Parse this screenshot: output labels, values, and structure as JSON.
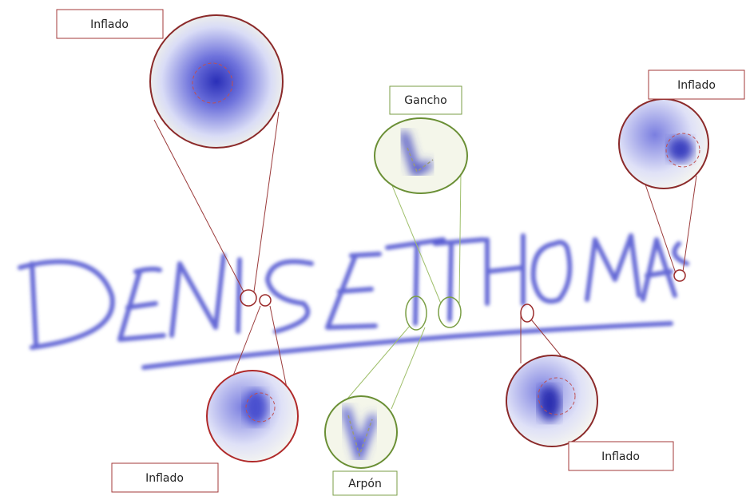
{
  "nodes": [
    {
      "label": "Inflado"
    },
    {
      "label": "Gancho"
    },
    {
      "label": "Inflado"
    },
    {
      "label": "Inflado"
    },
    {
      "label": "Arpón"
    },
    {
      "label": "Inflado"
    }
  ]
}
